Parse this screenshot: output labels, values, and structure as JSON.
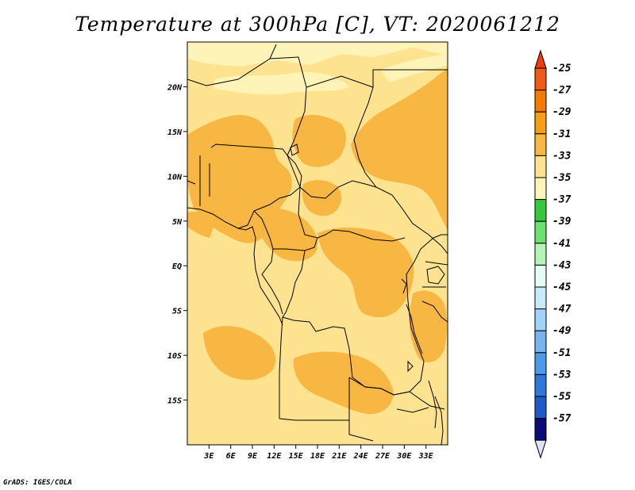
{
  "title": "Temperature at 300hPa [C], VT: 2020061212",
  "credit": "GrADS: IGES/COLA",
  "colors": {
    "background_level": "#fde38f",
    "warm_patch": "#f8b642",
    "pale_patch": "#fff4b8",
    "border": "#000000"
  },
  "map": {
    "region": "Central Africa",
    "lon_range": [
      0,
      36
    ],
    "lat_range": [
      -20,
      25
    ],
    "x_ticks": [
      {
        "lon": 3,
        "label": "3E"
      },
      {
        "lon": 6,
        "label": "6E"
      },
      {
        "lon": 9,
        "label": "9E"
      },
      {
        "lon": 12,
        "label": "12E"
      },
      {
        "lon": 15,
        "label": "15E"
      },
      {
        "lon": 18,
        "label": "18E"
      },
      {
        "lon": 21,
        "label": "21E"
      },
      {
        "lon": 24,
        "label": "24E"
      },
      {
        "lon": 27,
        "label": "27E"
      },
      {
        "lon": 30,
        "label": "30E"
      },
      {
        "lon": 33,
        "label": "33E"
      }
    ],
    "y_ticks": [
      {
        "lat": 20,
        "label": "20N"
      },
      {
        "lat": 15,
        "label": "15N"
      },
      {
        "lat": 10,
        "label": "10N"
      },
      {
        "lat": 5,
        "label": "5N"
      },
      {
        "lat": 0,
        "label": "EQ"
      },
      {
        "lat": -5,
        "label": "5S"
      },
      {
        "lat": -10,
        "label": "10S"
      },
      {
        "lat": -15,
        "label": "15S"
      }
    ]
  },
  "colorbar": {
    "levels": [
      {
        "label": "-25",
        "color": "#f05a14"
      },
      {
        "label": "-27",
        "color": "#f57a00"
      },
      {
        "label": "-29",
        "color": "#f89c14"
      },
      {
        "label": "-31",
        "color": "#f8b642"
      },
      {
        "label": "-33",
        "color": "#fde38f"
      },
      {
        "label": "-35",
        "color": "#fff4b8"
      },
      {
        "label": "-37",
        "color": "#37c83c"
      },
      {
        "label": "-39",
        "color": "#6ce36c"
      },
      {
        "label": "-41",
        "color": "#b4f5b4"
      },
      {
        "label": "-43",
        "color": "#e4fcf6"
      },
      {
        "label": "-45",
        "color": "#c8ebfa"
      },
      {
        "label": "-47",
        "color": "#a0d2fa"
      },
      {
        "label": "-49",
        "color": "#78b4f0"
      },
      {
        "label": "-51",
        "color": "#4b9beb"
      },
      {
        "label": "-53",
        "color": "#2d78dc"
      },
      {
        "label": "-55",
        "color": "#1e5ac8"
      },
      {
        "label": "-57",
        "color": "#0a0a78"
      }
    ],
    "top_arrow_color": "#f03c0a",
    "bottom_arrow_color": "#e0e0fa"
  }
}
